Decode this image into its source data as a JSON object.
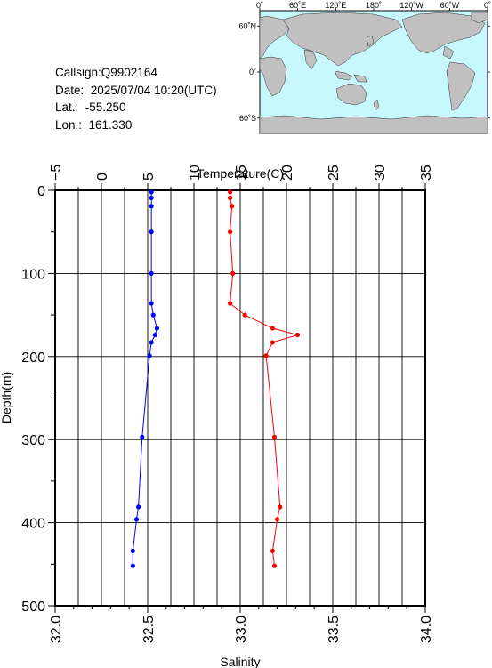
{
  "info": {
    "callsign": "Callsign:Q9902164",
    "date": "Date:  2025/07/04 10:20(UTC)",
    "lat": "Lat.:  -55.250",
    "lon": "Lon.:  161.330"
  },
  "map": {
    "top_labels": [
      "0˚",
      "60˚E",
      "120˚E",
      "180˚",
      "120˚W",
      "60˚W",
      "0˚"
    ],
    "left_labels": [
      "60˚N",
      "0˚",
      "60˚S"
    ],
    "land_color": "#c0c0c0",
    "ocean_color": "#c8f8ff",
    "marker_color": "#ff0000",
    "marker_symbol": "star"
  },
  "chart_data": {
    "type": "line",
    "ylabel": "Depth(m)",
    "ylim": [
      0,
      500
    ],
    "y_ticks": [
      "0",
      "100",
      "200",
      "300",
      "400",
      "500"
    ],
    "x_top_label": "Temperature(C)",
    "x_top_lim": [
      -5,
      35
    ],
    "x_top_ticks": [
      "−5",
      "0",
      "5",
      "10",
      "15",
      "20",
      "25",
      "30",
      "35"
    ],
    "x_bottom_label": "Salinity",
    "x_bottom_lim": [
      32.0,
      34.0
    ],
    "x_bottom_ticks": [
      "32.0",
      "32.5",
      "33.0",
      "33.5",
      "34.0"
    ],
    "grid": true,
    "series": [
      {
        "axis": "bottom",
        "color": "#0000ff",
        "points": [
          [
            32.52,
            2
          ],
          [
            32.52,
            9
          ],
          [
            32.52,
            19
          ],
          [
            32.52,
            50
          ],
          [
            32.52,
            100
          ],
          [
            32.52,
            136
          ],
          [
            32.53,
            150
          ],
          [
            32.55,
            166
          ],
          [
            32.54,
            174
          ],
          [
            32.52,
            183
          ],
          [
            32.51,
            199
          ],
          [
            32.47,
            297
          ],
          [
            32.45,
            381
          ],
          [
            32.44,
            396
          ],
          [
            32.42,
            434
          ],
          [
            32.42,
            452
          ]
        ]
      },
      {
        "axis": "top",
        "color": "#ff0000",
        "points": [
          [
            13.9,
            2
          ],
          [
            13.9,
            9
          ],
          [
            14.1,
            19
          ],
          [
            13.9,
            50
          ],
          [
            14.2,
            100
          ],
          [
            13.9,
            136
          ],
          [
            15.5,
            150
          ],
          [
            18.5,
            166
          ],
          [
            21.2,
            174
          ],
          [
            18.5,
            183
          ],
          [
            17.8,
            199
          ],
          [
            18.7,
            297
          ],
          [
            19.3,
            381
          ],
          [
            19.0,
            396
          ],
          [
            18.5,
            434
          ],
          [
            18.7,
            452
          ]
        ]
      }
    ]
  }
}
